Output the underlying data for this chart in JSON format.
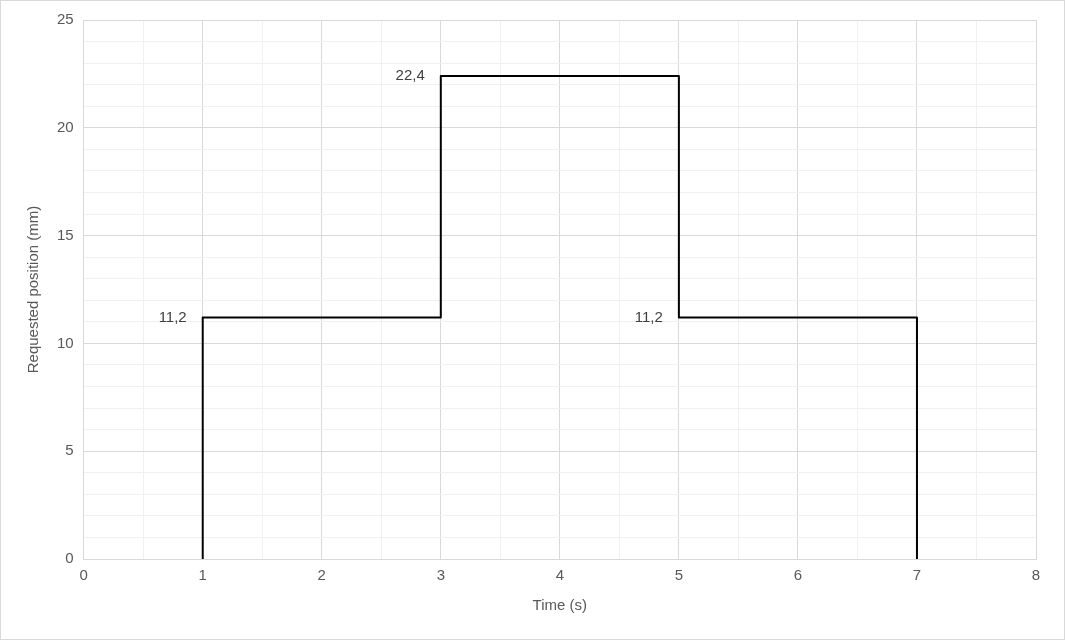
{
  "chart_data": {
    "type": "line",
    "xlabel": "Time (s)",
    "ylabel": "Requested position (mm)",
    "x": [
      1,
      1,
      3,
      3,
      5,
      5,
      7,
      7
    ],
    "series": [
      {
        "color": "#000000",
        "values": [
          0,
          11.2,
          11.2,
          22.4,
          22.4,
          11.2,
          11.2,
          0
        ],
        "value_labels": [
          null,
          "11,2",
          null,
          "22,4",
          null,
          "11,2",
          null,
          null
        ]
      }
    ],
    "xlim": [
      0,
      8
    ],
    "xticks": [
      0,
      {
        "value": 0.5,
        "label": null
      },
      1,
      {
        "value": 1.5,
        "label": null
      },
      2,
      {
        "value": 2.5,
        "label": null
      },
      3,
      {
        "value": 3.5,
        "label": null
      },
      4,
      {
        "value": 4.5,
        "label": null
      },
      5,
      {
        "value": 5.5,
        "label": null
      },
      6,
      {
        "value": 6.5,
        "label": null
      },
      7,
      {
        "value": 7.5,
        "label": null
      },
      8
    ],
    "ylim": [
      0,
      25
    ],
    "yticks": [
      0,
      {
        "value": 1,
        "label": null
      },
      {
        "value": 2,
        "label": null
      },
      {
        "value": 3,
        "label": null
      },
      {
        "value": 4,
        "label": null
      },
      5,
      {
        "value": 6,
        "label": null
      },
      {
        "value": 7,
        "label": null
      },
      {
        "value": 8,
        "label": null
      },
      {
        "value": 9,
        "label": null
      },
      10,
      {
        "value": 11,
        "label": null
      },
      {
        "value": 12,
        "label": null
      },
      {
        "value": 13,
        "label": null
      },
      {
        "value": 14,
        "label": null
      },
      15,
      {
        "value": 16,
        "label": null
      },
      {
        "value": 17,
        "label": null
      },
      {
        "value": 18,
        "label": null
      },
      {
        "value": 19,
        "label": null
      },
      20,
      {
        "value": 21,
        "label": null
      },
      {
        "value": 22,
        "label": null
      },
      {
        "value": 23,
        "label": null
      },
      {
        "value": 24,
        "label": null
      },
      25
    ],
    "grid": true,
    "legend": false,
    "marker": "none",
    "line_style": "solid"
  }
}
